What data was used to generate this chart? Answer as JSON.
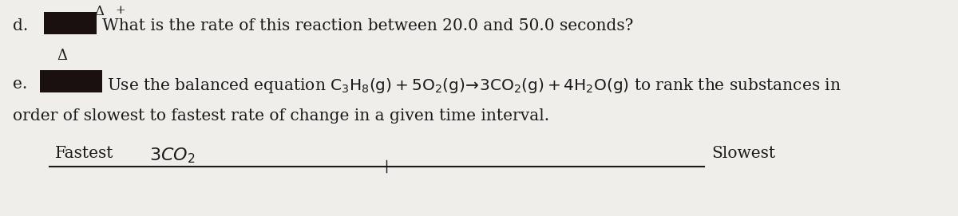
{
  "bg_color": "#f0eeea",
  "text_color": "#1a1a1a",
  "dark_block": "#1a1010",
  "line_d_label": "d.",
  "line_d_text": "What is the rate of this reaction between 20.0 and 50.0 seconds?",
  "line_e_label": "e.",
  "line_e_cont": "order of slowest to fastest rate of change in a given time interval.",
  "fastest_label": "Fastest",
  "slowest_label": "Slowest",
  "delta_symbol": "Δ",
  "plus_symbol": "+",
  "font_size_main": 14.5,
  "font_size_small": 11
}
